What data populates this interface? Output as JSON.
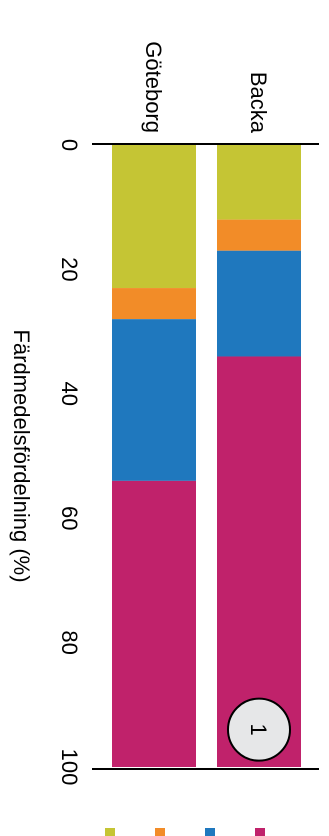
{
  "chart_data": {
    "type": "bar",
    "orientation": "horizontal-stacked",
    "categories": [
      "Backa",
      "Göteborg"
    ],
    "series": [
      {
        "color": "#C5C534",
        "values": [
          12,
          23
        ]
      },
      {
        "color": "#F28C28",
        "values": [
          5,
          5
        ]
      },
      {
        "color": "#1F78BE",
        "values": [
          17,
          26
        ]
      },
      {
        "color": "#C0226B",
        "values": [
          66,
          46
        ]
      }
    ],
    "xlabel": "Färdmedelsfördelning (%)",
    "ylabel": "",
    "xlim": [
      0,
      100
    ],
    "ticks": [
      "0",
      "20",
      "40",
      "60",
      "80",
      "100"
    ],
    "grid": false,
    "annotations": [
      {
        "text": "1",
        "category": "Backa",
        "x": 94
      }
    ],
    "legend_swatch_colors": [
      "#C5C534",
      "#F28C28",
      "#1F78BE",
      "#C0226B"
    ]
  }
}
